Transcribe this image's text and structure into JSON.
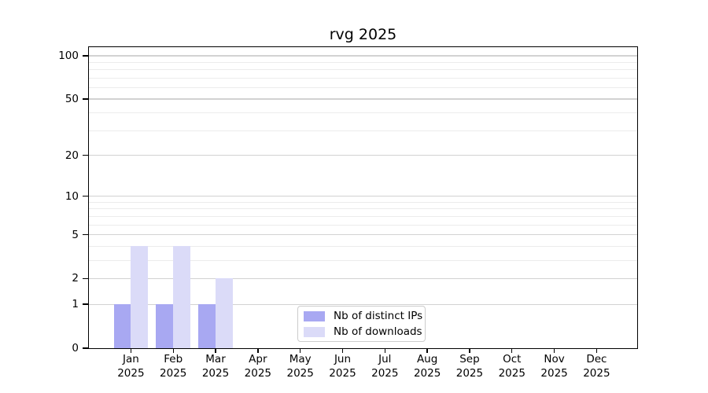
{
  "title": "rvg 2025",
  "chart_data": {
    "type": "bar",
    "title": "rvg 2025",
    "categories": [
      "Jan",
      "Feb",
      "Mar",
      "Apr",
      "May",
      "Jun",
      "Jul",
      "Aug",
      "Sep",
      "Oct",
      "Nov",
      "Dec"
    ],
    "year_label": "2025",
    "series": [
      {
        "name": "Nb of distinct IPs",
        "color": "#a8a8f2",
        "values": [
          1,
          1,
          1,
          0,
          0,
          0,
          0,
          0,
          0,
          0,
          0,
          0
        ]
      },
      {
        "name": "Nb of downloads",
        "color": "#dbdbf8",
        "values": [
          4,
          4,
          2,
          0,
          0,
          0,
          0,
          0,
          0,
          0,
          0,
          0
        ]
      }
    ],
    "yscale": "log1p",
    "ylim": [
      0,
      115
    ],
    "yticks": [
      0,
      1,
      2,
      5,
      10,
      20,
      50,
      100
    ],
    "minor_yticks": [
      3,
      4,
      6,
      7,
      8,
      9,
      30,
      40,
      60,
      70,
      80,
      90
    ],
    "grid": "horizontal",
    "legend_position": "lower center",
    "axis_color": "#000000",
    "major_grid_color": "#d2d2d2",
    "minor_grid_color": "#ececec"
  }
}
